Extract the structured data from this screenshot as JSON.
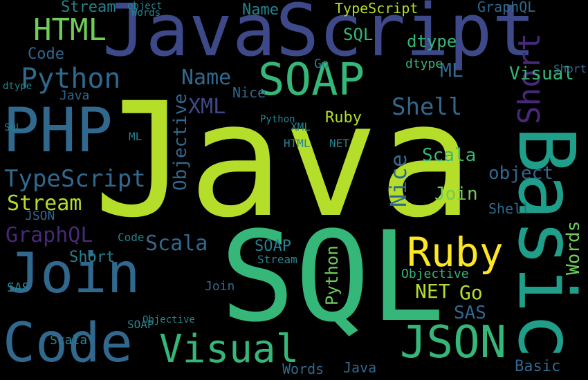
{
  "palette": {
    "background": "#000000",
    "dark_purple": "#440154",
    "purple": "#482878",
    "indigo": "#3e4989",
    "steel_blue": "#31688e",
    "teal_blue": "#26828e",
    "teal": "#1f9e89",
    "green": "#35b779",
    "lime": "#6ece58",
    "yellow_green": "#b5de2b",
    "yellow": "#fde725"
  },
  "words": [
    {
      "text": "Java"
    },
    {
      "text": "SQL"
    },
    {
      "text": "JavaScript"
    },
    {
      "text": "Basic"
    },
    {
      "text": "PHP"
    },
    {
      "text": "SOAP"
    },
    {
      "text": "Join"
    },
    {
      "text": "Code"
    },
    {
      "text": "Visual"
    },
    {
      "text": "JSON"
    },
    {
      "text": "Ruby"
    },
    {
      "text": "Python"
    },
    {
      "text": "Short"
    },
    {
      "text": "HTML"
    },
    {
      "text": "TypeScript"
    },
    {
      "text": "Stream"
    },
    {
      "text": "Shell"
    },
    {
      "text": "Scala"
    },
    {
      "text": "XML"
    },
    {
      "text": "Objective"
    },
    {
      "text": "GraphQL"
    },
    {
      "text": "Name"
    },
    {
      "text": "object"
    },
    {
      "text": "Words"
    },
    {
      "text": "dtype"
    },
    {
      "text": "Nice"
    },
    {
      "text": "NET"
    },
    {
      "text": "Go"
    },
    {
      "text": "SAS"
    },
    {
      "text": "ML"
    },
    {
      "text": "Python"
    },
    {
      "text": "Visual"
    },
    {
      "text": "Stream"
    },
    {
      "text": "Join"
    },
    {
      "text": "Short"
    },
    {
      "text": "Scala"
    },
    {
      "text": "SOAP"
    },
    {
      "text": "Name"
    },
    {
      "text": "Words"
    },
    {
      "text": "Code"
    },
    {
      "text": "dtype"
    },
    {
      "text": "Basic"
    },
    {
      "text": "Ruby"
    },
    {
      "text": "Java"
    },
    {
      "text": "SQL"
    },
    {
      "text": "XML"
    },
    {
      "text": "Objective"
    },
    {
      "text": "object"
    },
    {
      "text": "NET"
    },
    {
      "text": "Go"
    },
    {
      "text": "SAS"
    },
    {
      "text": "HTML"
    },
    {
      "text": "GraphQL"
    },
    {
      "text": "Shell"
    },
    {
      "text": "ML"
    },
    {
      "text": "Nice"
    },
    {
      "text": "JSON"
    },
    {
      "text": "TypeScript"
    },
    {
      "text": "Python"
    },
    {
      "text": "Java"
    },
    {
      "text": "Code"
    },
    {
      "text": "Words"
    },
    {
      "text": "SOAP"
    },
    {
      "text": "Scala"
    },
    {
      "text": "Short"
    },
    {
      "text": "dtype"
    },
    {
      "text": "Objective"
    },
    {
      "text": "Join"
    },
    {
      "text": "Stream"
    },
    {
      "text": "SQL"
    }
  ]
}
